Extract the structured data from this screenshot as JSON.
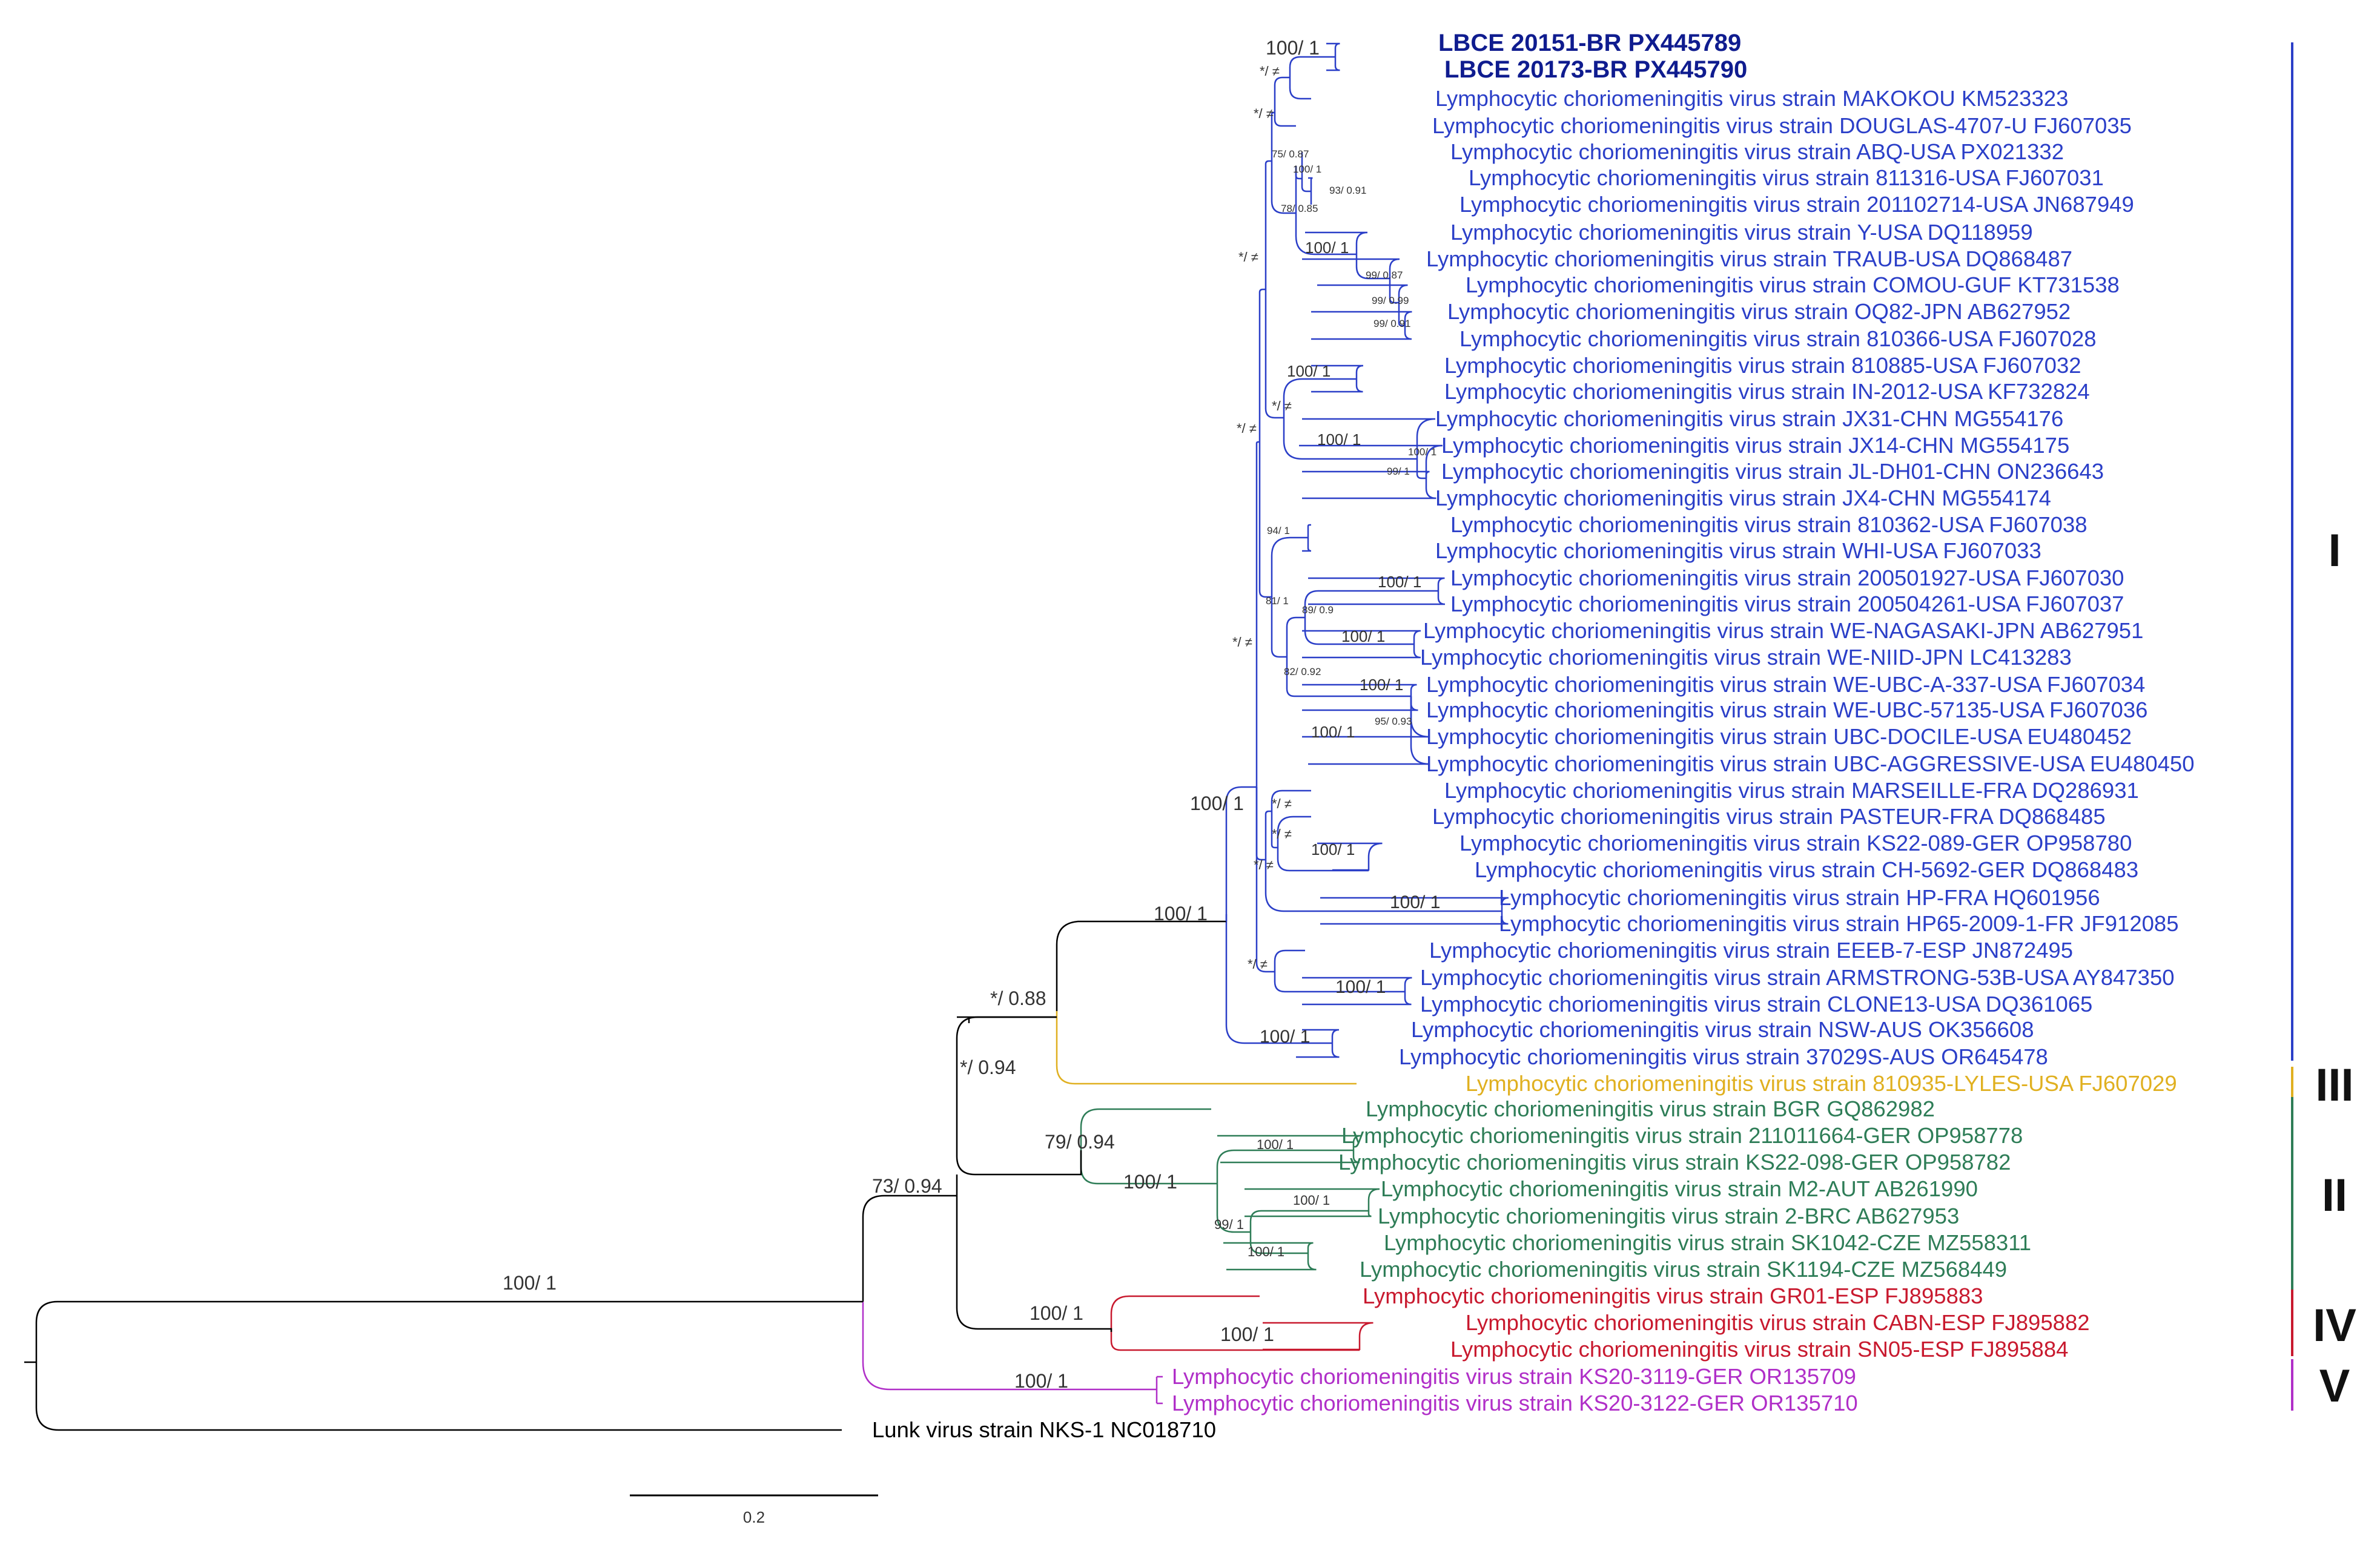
{
  "colors": {
    "clade_I": "#2b3fc8",
    "clade_II": "#2e7d57",
    "clade_III": "#e0b020",
    "clade_IV": "#c8192e",
    "clade_V": "#b02fc8",
    "outgroup": "#000000",
    "highlight": "#0f1c8f"
  },
  "clades": {
    "I": "I",
    "II": "II",
    "III": "III",
    "IV": "IV",
    "V": "V"
  },
  "scale_bar": {
    "label": "0.2"
  },
  "taxa": [
    {
      "label": "LBCE 20151-BR PX445789",
      "clade": "I",
      "highlight": true
    },
    {
      "label": "LBCE 20173-BR PX445790",
      "clade": "I",
      "highlight": true
    },
    {
      "label": "Lymphocytic choriomeningitis virus strain MAKOKOU KM523323",
      "clade": "I"
    },
    {
      "label": "Lymphocytic choriomeningitis virus strain DOUGLAS-4707-U FJ607035",
      "clade": "I"
    },
    {
      "label": "Lymphocytic choriomeningitis virus strain ABQ-USA PX021332",
      "clade": "I"
    },
    {
      "label": "Lymphocytic choriomeningitis virus strain 811316-USA FJ607031",
      "clade": "I"
    },
    {
      "label": "Lymphocytic choriomeningitis virus strain 201102714-USA JN687949",
      "clade": "I"
    },
    {
      "label": "Lymphocytic choriomeningitis virus strain Y-USA DQ118959",
      "clade": "I"
    },
    {
      "label": "Lymphocytic choriomeningitis virus strain TRAUB-USA DQ868487",
      "clade": "I"
    },
    {
      "label": "Lymphocytic choriomeningitis virus strain COMOU-GUF KT731538",
      "clade": "I"
    },
    {
      "label": "Lymphocytic choriomeningitis virus strain OQ82-JPN AB627952",
      "clade": "I"
    },
    {
      "label": "Lymphocytic choriomeningitis virus strain 810366-USA FJ607028",
      "clade": "I"
    },
    {
      "label": "Lymphocytic choriomeningitis virus strain 810885-USA FJ607032",
      "clade": "I"
    },
    {
      "label": "Lymphocytic choriomeningitis virus strain IN-2012-USA KF732824",
      "clade": "I"
    },
    {
      "label": "Lymphocytic choriomeningitis virus strain JX31-CHN MG554176",
      "clade": "I"
    },
    {
      "label": "Lymphocytic choriomeningitis virus strain JX14-CHN MG554175",
      "clade": "I"
    },
    {
      "label": "Lymphocytic choriomeningitis virus strain JL-DH01-CHN ON236643",
      "clade": "I"
    },
    {
      "label": "Lymphocytic choriomeningitis virus strain JX4-CHN MG554174",
      "clade": "I"
    },
    {
      "label": "Lymphocytic choriomeningitis virus strain 810362-USA FJ607038",
      "clade": "I"
    },
    {
      "label": "Lymphocytic choriomeningitis virus strain WHI-USA FJ607033",
      "clade": "I"
    },
    {
      "label": "Lymphocytic choriomeningitis virus strain 200501927-USA FJ607030",
      "clade": "I"
    },
    {
      "label": "Lymphocytic choriomeningitis virus strain 200504261-USA FJ607037",
      "clade": "I"
    },
    {
      "label": "Lymphocytic choriomeningitis virus strain WE-NAGASAKI-JPN AB627951",
      "clade": "I"
    },
    {
      "label": "Lymphocytic choriomeningitis virus strain WE-NIID-JPN LC413283",
      "clade": "I"
    },
    {
      "label": "Lymphocytic choriomeningitis virus strain WE-UBC-A-337-USA FJ607034",
      "clade": "I"
    },
    {
      "label": "Lymphocytic choriomeningitis virus strain WE-UBC-57135-USA FJ607036",
      "clade": "I"
    },
    {
      "label": "Lymphocytic choriomeningitis virus strain UBC-DOCILE-USA EU480452",
      "clade": "I"
    },
    {
      "label": "Lymphocytic choriomeningitis virus strain UBC-AGGRESSIVE-USA EU480450",
      "clade": "I"
    },
    {
      "label": "Lymphocytic choriomeningitis virus strain MARSEILLE-FRA DQ286931",
      "clade": "I"
    },
    {
      "label": "Lymphocytic choriomeningitis virus strain PASTEUR-FRA DQ868485",
      "clade": "I"
    },
    {
      "label": "Lymphocytic choriomeningitis virus strain KS22-089-GER OP958780",
      "clade": "I"
    },
    {
      "label": "Lymphocytic choriomeningitis virus strain CH-5692-GER DQ868483",
      "clade": "I"
    },
    {
      "label": "Lymphocytic choriomeningitis virus strain HP-FRA HQ601956",
      "clade": "I"
    },
    {
      "label": "Lymphocytic choriomeningitis virus strain HP65-2009-1-FR JF912085",
      "clade": "I"
    },
    {
      "label": "Lymphocytic choriomeningitis virus strain EEEB-7-ESP JN872495",
      "clade": "I"
    },
    {
      "label": "Lymphocytic choriomeningitis virus strain ARMSTRONG-53B-USA AY847350",
      "clade": "I"
    },
    {
      "label": "Lymphocytic choriomeningitis virus strain CLONE13-USA DQ361065",
      "clade": "I"
    },
    {
      "label": "Lymphocytic choriomeningitis virus strain NSW-AUS OK356608",
      "clade": "I"
    },
    {
      "label": "Lymphocytic choriomeningitis virus strain 37029S-AUS OR645478",
      "clade": "I"
    },
    {
      "label": "Lymphocytic choriomeningitis virus strain 810935-LYLES-USA FJ607029",
      "clade": "III"
    },
    {
      "label": "Lymphocytic choriomeningitis virus strain BGR GQ862982",
      "clade": "II"
    },
    {
      "label": "Lymphocytic choriomeningitis virus strain 211011664-GER OP958778",
      "clade": "II"
    },
    {
      "label": "Lymphocytic choriomeningitis virus strain KS22-098-GER OP958782",
      "clade": "II"
    },
    {
      "label": "Lymphocytic choriomeningitis virus strain M2-AUT AB261990",
      "clade": "II"
    },
    {
      "label": "Lymphocytic choriomeningitis virus strain 2-BRC AB627953",
      "clade": "II"
    },
    {
      "label": "Lymphocytic choriomeningitis virus strain SK1042-CZE MZ558311",
      "clade": "II"
    },
    {
      "label": "Lymphocytic choriomeningitis virus strain SK1194-CZE MZ568449",
      "clade": "II"
    },
    {
      "label": "Lymphocytic choriomeningitis virus strain GR01-ESP FJ895883",
      "clade": "IV"
    },
    {
      "label": "Lymphocytic choriomeningitis virus strain CABN-ESP FJ895882",
      "clade": "IV"
    },
    {
      "label": "Lymphocytic choriomeningitis virus strain SN05-ESP FJ895884",
      "clade": "IV"
    },
    {
      "label": "Lymphocytic choriomeningitis virus strain KS20-3119-GER OR135709",
      "clade": "V"
    },
    {
      "label": "Lymphocytic choriomeningitis virus strain KS20-3122-GER OR135710",
      "clade": "V"
    },
    {
      "label": "Lunk virus strain NKS-1 NC018710",
      "clade": "outgroup"
    }
  ],
  "supports": [
    {
      "id": "lbce",
      "label": "100/ 1"
    },
    {
      "id": "mak",
      "label": "*/ ≠"
    },
    {
      "id": "doug",
      "label": "*/ ≠"
    },
    {
      "id": "a",
      "label": "75/ 0.87"
    },
    {
      "id": "b",
      "label": "100/ 1"
    },
    {
      "id": "c",
      "label": "93/ 0.91"
    },
    {
      "id": "d",
      "label": "78/ 0.85"
    },
    {
      "id": "e",
      "label": "100/ 1"
    },
    {
      "id": "f",
      "label": "99/ 0.87"
    },
    {
      "id": "g",
      "label": "99/ 0.99"
    },
    {
      "id": "h",
      "label": "99/ 0.91"
    },
    {
      "id": "big1",
      "label": "*/ ≠"
    },
    {
      "id": "pair810885",
      "label": "100/ 1"
    },
    {
      "id": "big2",
      "label": "*/ ≠"
    },
    {
      "id": "mid",
      "label": "*/ ≠"
    },
    {
      "id": "chn",
      "label": "100/ 1"
    },
    {
      "id": "chn_in",
      "label": "100/ 1"
    },
    {
      "id": "chn_in2",
      "label": "99/ 1"
    },
    {
      "id": "b2",
      "label": "94/ 1"
    },
    {
      "id": "b2b",
      "label": "81/ 1"
    },
    {
      "id": "b2c",
      "label": "89/ 0.9"
    },
    {
      "id": "pair2005",
      "label": "100/ 1"
    },
    {
      "id": "we",
      "label": "100/ 1"
    },
    {
      "id": "b2d",
      "label": "82/ 0.92"
    },
    {
      "id": "ubc",
      "label": "100/ 1"
    },
    {
      "id": "ubc_in",
      "label": "95/ 0.93"
    },
    {
      "id": "ubc_grp",
      "label": "100/ 1"
    },
    {
      "id": "big3",
      "label": "*/ ≠"
    },
    {
      "id": "ms",
      "label": "*/ ≠"
    },
    {
      "id": "ps",
      "label": "*/ ≠"
    },
    {
      "id": "ks",
      "label": "100/ 1"
    },
    {
      "id": "ch",
      "label": "*/ ≠"
    },
    {
      "id": "hp",
      "label": "100/ 1"
    },
    {
      "id": "ee",
      "label": "*/ ≠"
    },
    {
      "id": "arm",
      "label": "100/ 1"
    },
    {
      "id": "cladeI",
      "label": "100/ 1"
    },
    {
      "id": "aus",
      "label": "100/ 1"
    },
    {
      "id": "I_III_stem",
      "label": "100/ 1"
    },
    {
      "id": "I_III",
      "label": "*/ 0.88"
    },
    {
      "id": "I_III_II_IV",
      "label": "*/ 0.94"
    },
    {
      "id": "II",
      "label": "79/ 0.94"
    },
    {
      "id": "II_sub",
      "label": "100/ 1"
    },
    {
      "id": "II_a",
      "label": "100/ 1"
    },
    {
      "id": "II_b",
      "label": "99/ 1"
    },
    {
      "id": "II_c",
      "label": "100/ 1"
    },
    {
      "id": "II_d",
      "label": "100/ 1"
    },
    {
      "id": "IV",
      "label": "100/ 1"
    },
    {
      "id": "IV_sub",
      "label": "100/ 1"
    },
    {
      "id": "ingroup",
      "label": "73/ 0.94"
    },
    {
      "id": "V",
      "label": "100/ 1"
    },
    {
      "id": "root",
      "label": "100/ 1"
    }
  ]
}
